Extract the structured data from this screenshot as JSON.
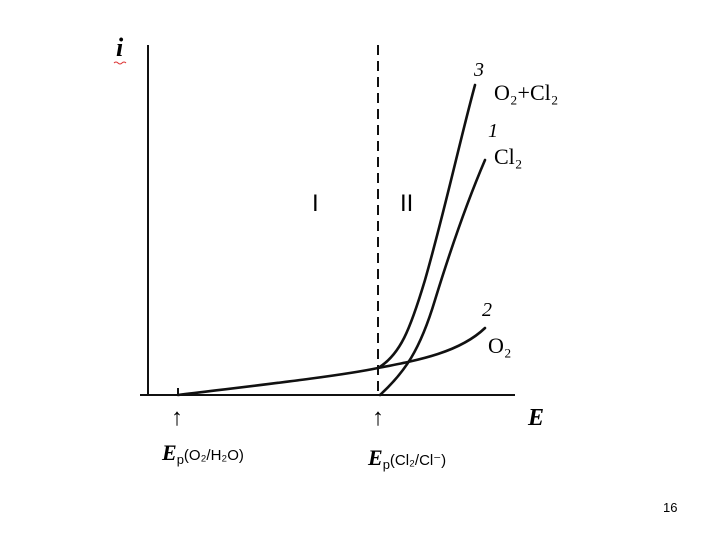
{
  "axes": {
    "y_label": "i",
    "x_label": "E"
  },
  "regions": [
    "I",
    "II"
  ],
  "curves": [
    {
      "number": "3",
      "label": "O₂+Cl₂"
    },
    {
      "number": "1",
      "label": "Cl₂"
    },
    {
      "number": "2",
      "label": "O₂"
    }
  ],
  "markers": [
    {
      "arrow": "↑",
      "symbol": "E",
      "subscript": "p",
      "argument": "(O₂/H₂O)"
    },
    {
      "arrow": "↑",
      "symbol": "E",
      "subscript": "p",
      "argument": "(Cl₂/Cl⁻)"
    }
  ],
  "slide_number": "16"
}
